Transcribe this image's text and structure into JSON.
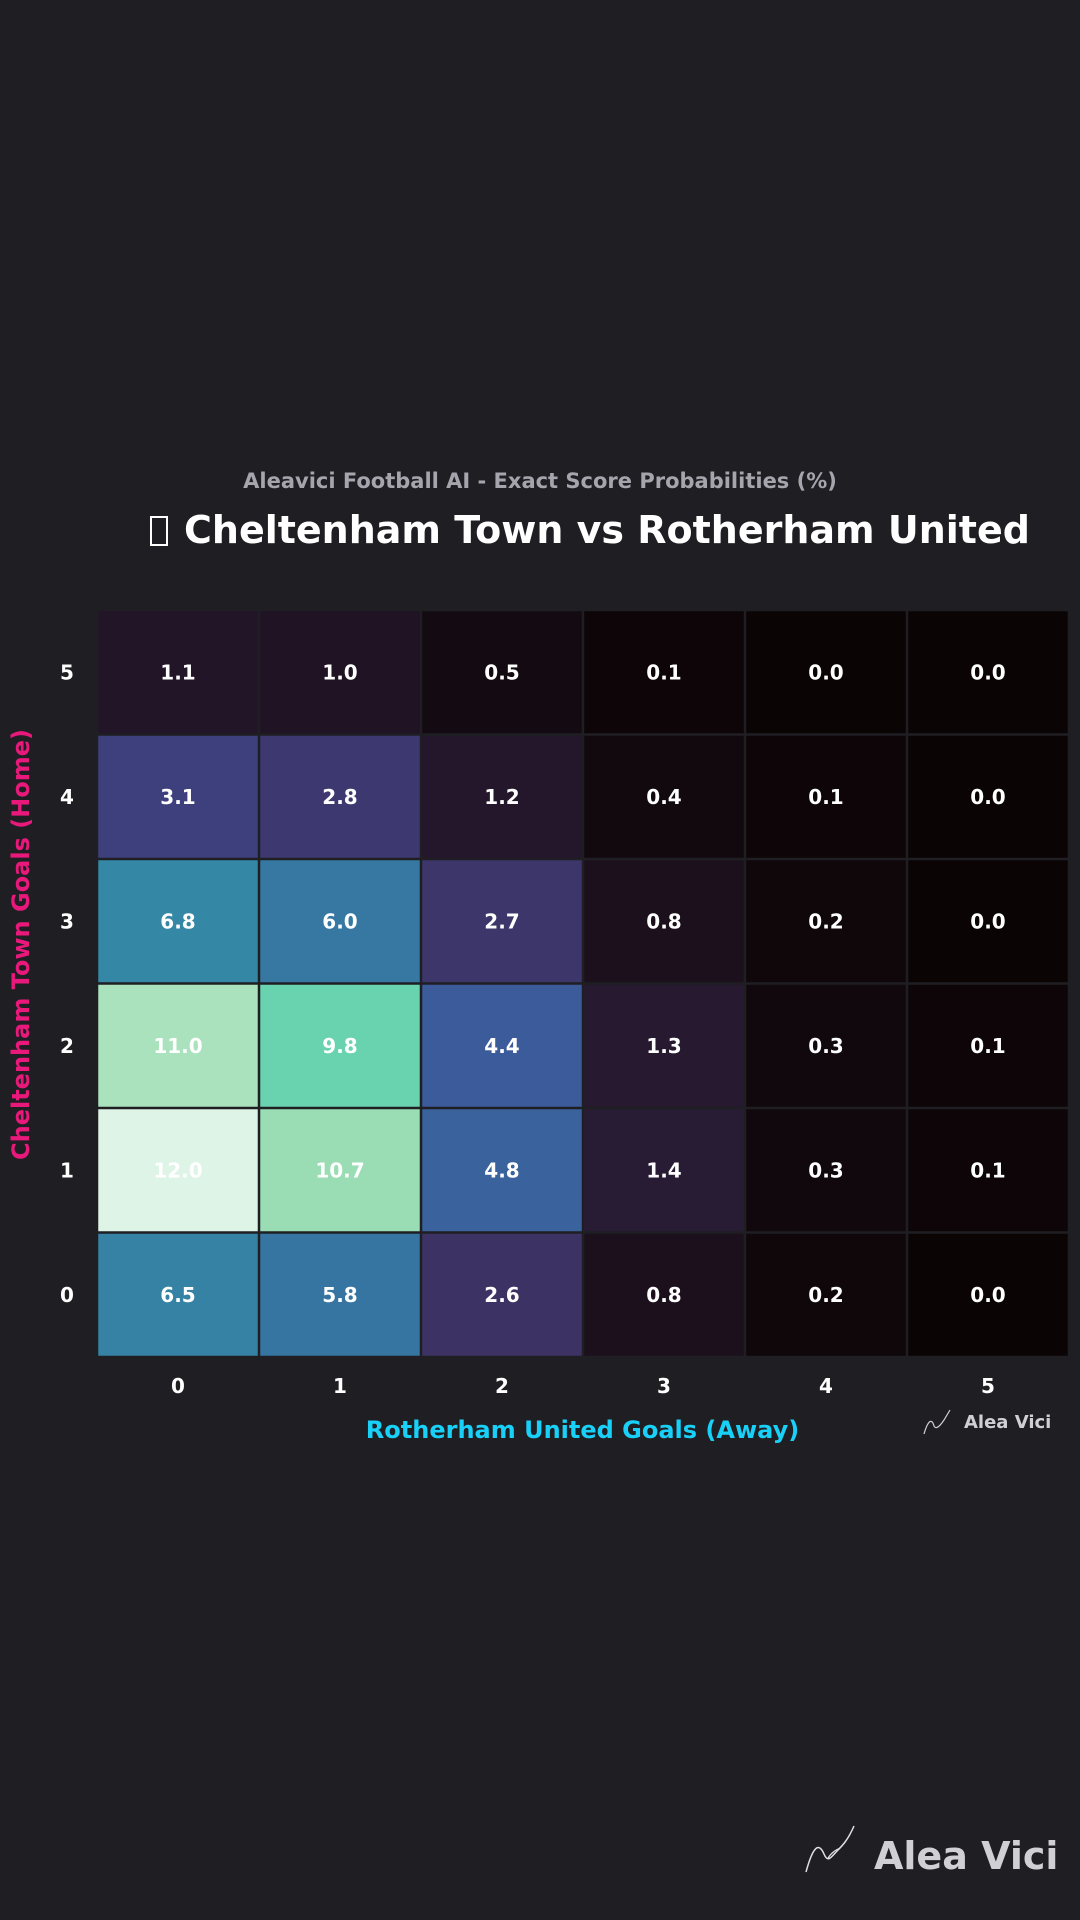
{
  "header": {
    "subtitle": "Aleavici Football AI - Exact Score Probabilities (%)",
    "title": "Cheltenham Town vs Rotherham United"
  },
  "watermark": {
    "small": "Alea Vici",
    "large": "Alea Vici"
  },
  "chart_data": {
    "type": "heatmap",
    "xlabel": "Rotherham United Goals (Away)",
    "ylabel": "Cheltenham Town Goals (Home)",
    "x_categories": [
      "0",
      "1",
      "2",
      "3",
      "4",
      "5"
    ],
    "y_categories": [
      "5",
      "4",
      "3",
      "2",
      "1",
      "0"
    ],
    "values": [
      [
        1.1,
        1.0,
        0.5,
        0.1,
        0.0,
        0.0
      ],
      [
        3.1,
        2.8,
        1.2,
        0.4,
        0.1,
        0.0
      ],
      [
        6.8,
        6.0,
        2.7,
        0.8,
        0.2,
        0.0
      ],
      [
        11.0,
        9.8,
        4.4,
        1.3,
        0.3,
        0.1
      ],
      [
        12.0,
        10.7,
        4.8,
        1.4,
        0.3,
        0.1
      ],
      [
        6.5,
        5.8,
        2.6,
        0.8,
        0.2,
        0.0
      ]
    ],
    "colormap": "mako",
    "colors": {
      "xlabel": "#18d0f8",
      "ylabel": "#e8197b",
      "cell_text": "#ffffff",
      "tick_text": "#ffffff"
    }
  }
}
